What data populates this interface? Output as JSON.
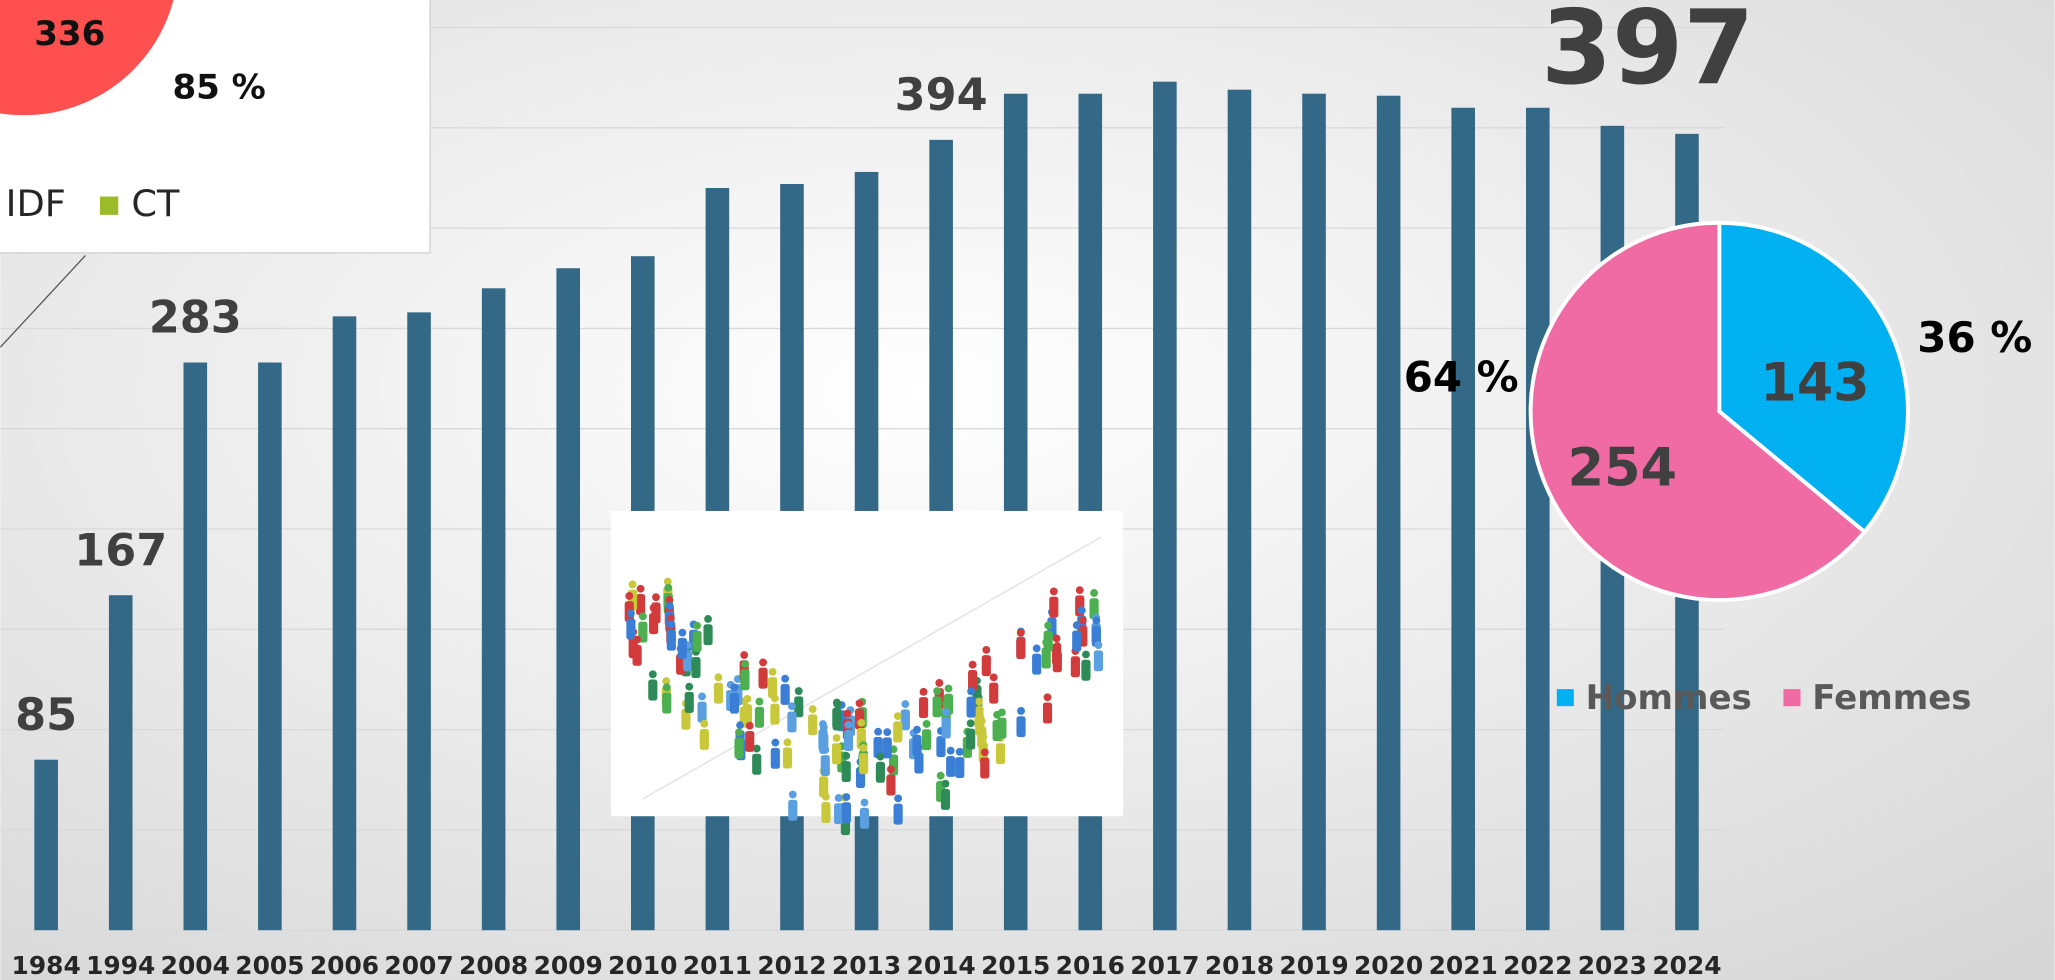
{
  "chart_data": [
    {
      "type": "bar",
      "categories": [
        "1984",
        "1994",
        "2004",
        "2005",
        "2006",
        "2007",
        "2008",
        "2009",
        "2010",
        "2011",
        "2012",
        "2013",
        "2014",
        "2015",
        "2016",
        "2017",
        "2018",
        "2019",
        "2020",
        "2021",
        "2022",
        "2023",
        "2024"
      ],
      "values": [
        85,
        167,
        283,
        283,
        306,
        308,
        320,
        330,
        336,
        370,
        372,
        378,
        394,
        417,
        417,
        423,
        419,
        417,
        416,
        410,
        410,
        401,
        397
      ],
      "value_labels": [
        "85",
        "167",
        "283",
        null,
        null,
        null,
        null,
        null,
        null,
        null,
        null,
        null,
        "394",
        null,
        null,
        null,
        null,
        null,
        null,
        null,
        null,
        null,
        "397"
      ],
      "color": "#336887",
      "ylim": [
        0,
        450
      ],
      "yticks": [
        0,
        50,
        100,
        150,
        200,
        250,
        300,
        350,
        400,
        450
      ],
      "grid": true
    },
    {
      "type": "pie",
      "categories": [
        "Hommes",
        "Femmes"
      ],
      "values": [
        143,
        254
      ],
      "percent_labels": [
        "36 %",
        "64 %"
      ],
      "colors": [
        "#00b0f0",
        "#f06ba3"
      ],
      "legend": "bottom"
    },
    {
      "type": "pie",
      "categories": [
        "IDF",
        "CT"
      ],
      "values": [
        336,
        null
      ],
      "percent_labels": [
        "85 %",
        null
      ],
      "colors": [
        "#ff5050",
        "#9bbb29"
      ]
    }
  ]
}
